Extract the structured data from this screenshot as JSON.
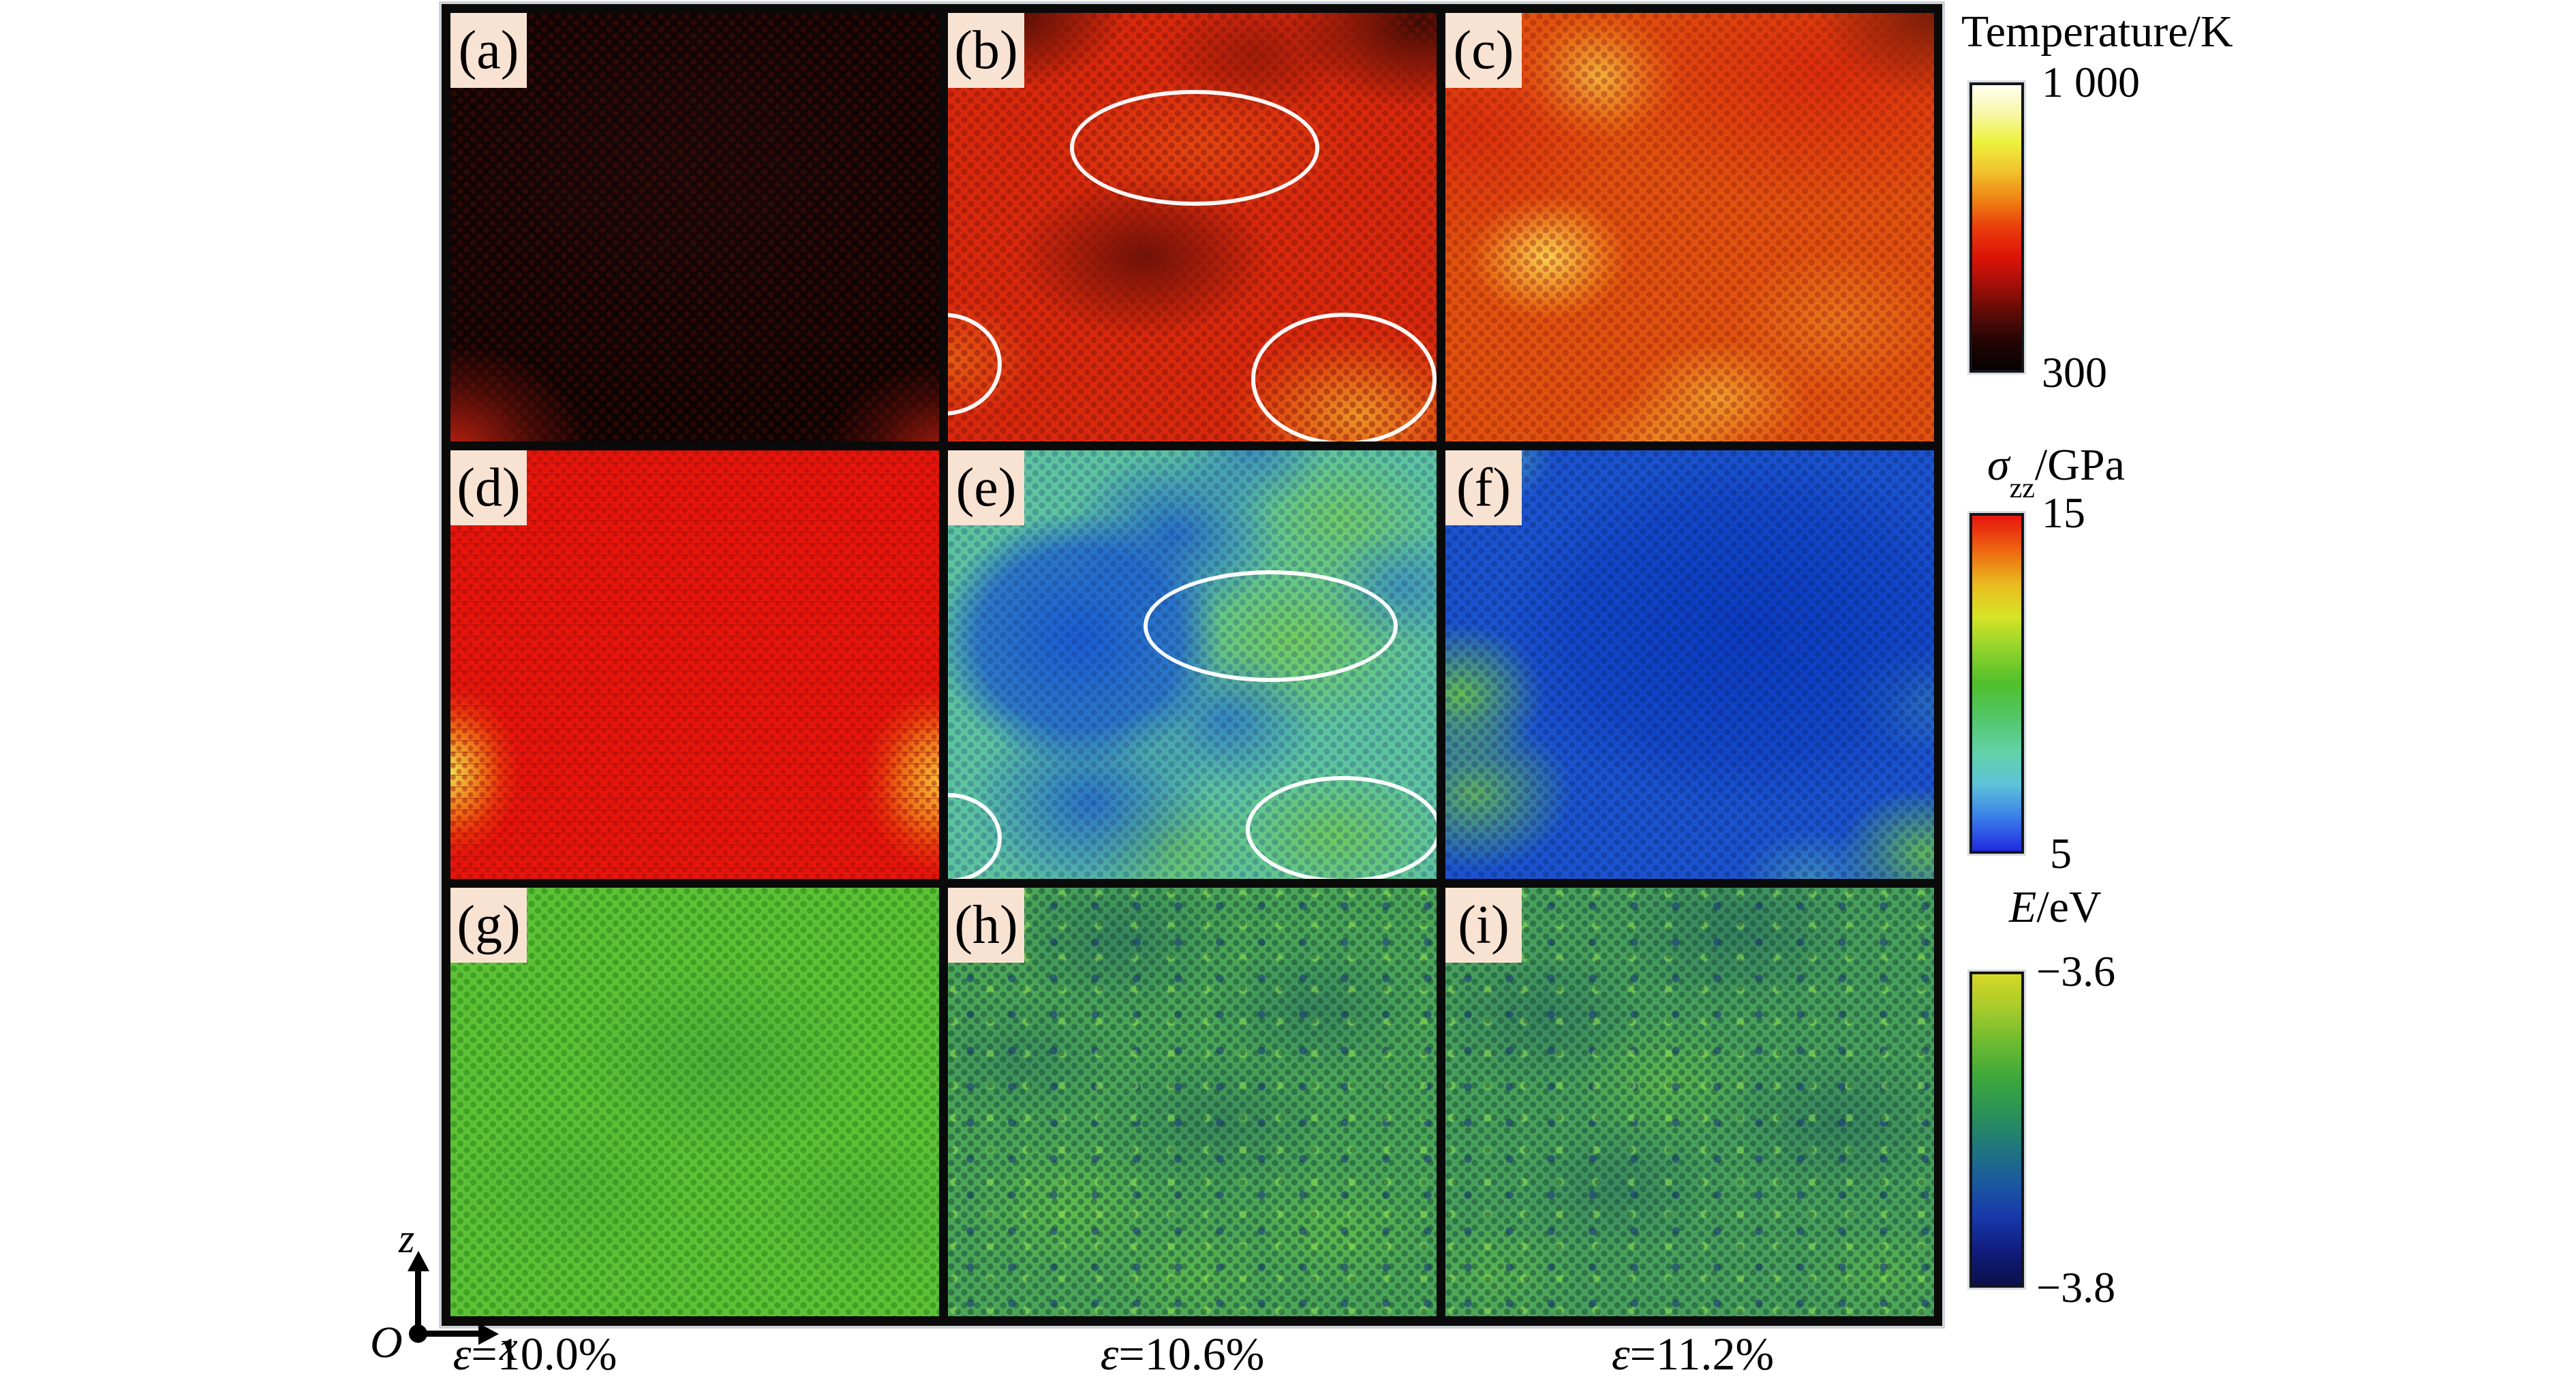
{
  "panels": [
    {
      "label": "(a)"
    },
    {
      "label": "(b)"
    },
    {
      "label": "(c)"
    },
    {
      "label": "(d)"
    },
    {
      "label": "(e)"
    },
    {
      "label": "(f)"
    },
    {
      "label": "(g)"
    },
    {
      "label": "(h)"
    },
    {
      "label": "(i)"
    }
  ],
  "colorbars": [
    {
      "name": "temperature",
      "title": "Temperature/K",
      "max": "1 000",
      "min": "300",
      "colors": [
        "#fffff0",
        "#f7f7a8",
        "#eef23c",
        "#f1c42e",
        "#ef8414",
        "#e93d0c",
        "#de1507",
        "#a50f08",
        "#5e0b06",
        "#230504",
        "#060202"
      ]
    },
    {
      "name": "sigma-zz",
      "symbol": "σ",
      "subscript": "zz",
      "unit": "/GPa",
      "max": "15",
      "min": "5",
      "colors": [
        "#e6150d",
        "#ee6311",
        "#eab81e",
        "#d8e426",
        "#8fd32c",
        "#50c02b",
        "#52c667",
        "#63d2a4",
        "#5ec4d8",
        "#3a7ee8",
        "#1f2ae0"
      ]
    },
    {
      "name": "energy",
      "symbol": "E",
      "subscript": "",
      "unit": "/eV",
      "max": "−3.6",
      "min": "−3.8",
      "colors": [
        "#d6d825",
        "#a6cb2b",
        "#6cba31",
        "#3da83c",
        "#2b9356",
        "#20787c",
        "#1b5a9e",
        "#1839ac",
        "#111d7e",
        "#0a0f4a"
      ]
    }
  ],
  "strains": [
    {
      "symbol": "ε",
      "value": "=10.0%"
    },
    {
      "symbol": "ε",
      "value": "=10.6%"
    },
    {
      "symbol": "ε",
      "value": "=11.2%"
    }
  ],
  "axes": {
    "vertical": "z",
    "origin": "O",
    "horizontal": "x"
  }
}
